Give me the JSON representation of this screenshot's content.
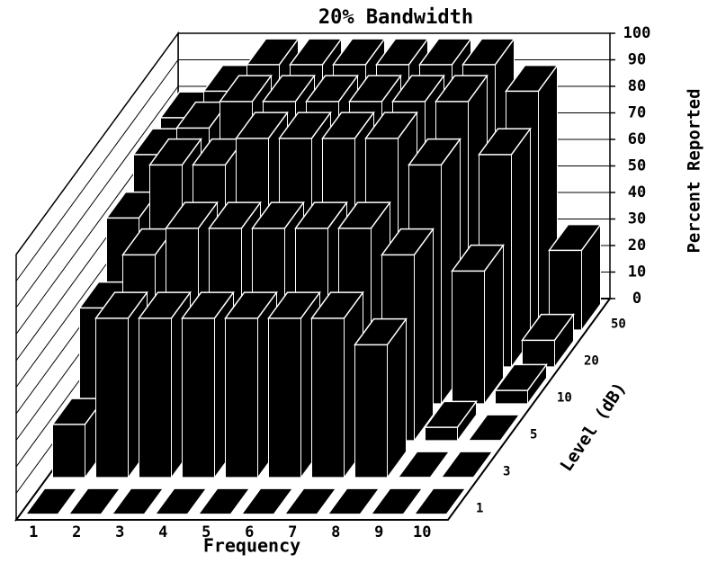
{
  "chart_data": {
    "type": "bar3d",
    "title": "20% Bandwidth",
    "x_label": "Frequency",
    "y_label": "Level (dB)",
    "z_label": "Percent Reported",
    "categories": [
      "1",
      "2",
      "3",
      "4",
      "5",
      "6",
      "7",
      "8",
      "9",
      "10"
    ],
    "color": "#000000",
    "series": [
      {
        "name": "1",
        "values": [
          0,
          0,
          0,
          0,
          0,
          0,
          0,
          0,
          0,
          0
        ]
      },
      {
        "name": "3",
        "values": [
          20,
          60,
          60,
          60,
          60,
          60,
          60,
          50,
          0,
          0
        ]
      },
      {
        "name": "5",
        "values": [
          50,
          70,
          80,
          80,
          80,
          80,
          80,
          70,
          5,
          0
        ]
      },
      {
        "name": "10",
        "values": [
          70,
          90,
          90,
          100,
          100,
          100,
          100,
          90,
          50,
          5
        ]
      },
      {
        "name": "20",
        "values": [
          80,
          90,
          100,
          100,
          100,
          100,
          100,
          100,
          80,
          10
        ]
      },
      {
        "name": "50",
        "values": [
          80,
          90,
          100,
          100,
          100,
          100,
          100,
          100,
          90,
          30
        ]
      }
    ],
    "zlim": [
      0,
      100
    ],
    "zticks": [
      0,
      10,
      20,
      30,
      40,
      50,
      60,
      70,
      80,
      90,
      100
    ],
    "grid": true
  }
}
